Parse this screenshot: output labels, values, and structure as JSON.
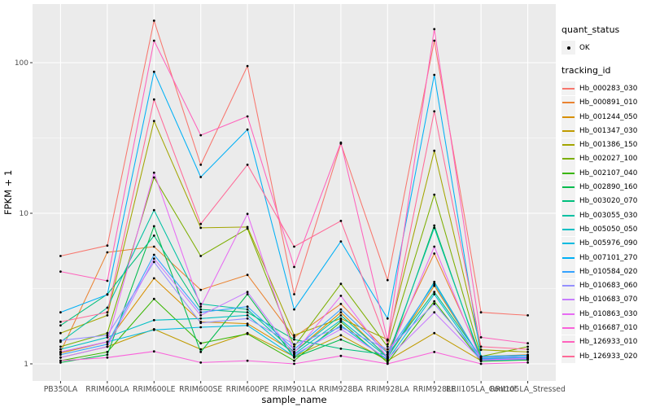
{
  "figure": {
    "bg": "#FFFFFF",
    "panel_bg": "#EBEBEB",
    "grid_color": "#FFFFFF",
    "tick_color": "#333333",
    "tick_label_color": "#4D4D4D",
    "point_color": "#000000",
    "legend_key_bg": "#F2F2F2"
  },
  "legend": {
    "quant_title": "quant_status",
    "quant_items": [
      {
        "label": "OK"
      }
    ],
    "tracking_title": "tracking_id"
  },
  "chart_data": {
    "type": "line",
    "title": "",
    "xlabel": "sample_name",
    "ylabel": "FPKM + 1",
    "yscale": "log10",
    "yticks": [
      1,
      10,
      100
    ],
    "ylim": [
      1,
      250
    ],
    "grid": "major-and-minor",
    "legend_position": "right",
    "categories": [
      "PB350LA",
      "RRIM600LA",
      "RRIM600LE",
      "RRIM600SE",
      "RRIM600PE",
      "RRIM901LA",
      "RRIM928BA",
      "RRIM928LA",
      "RRIM928LE",
      "RRII105LA_Control",
      "RRII105LA_Stressed"
    ],
    "series": [
      {
        "name": "Hb_000283_030",
        "color": "#F8766D",
        "values": [
          5.2,
          6.1,
          190,
          21,
          95,
          2.9,
          29,
          3.6,
          140,
          2.2,
          2.1
        ]
      },
      {
        "name": "Hb_000891_010",
        "color": "#EA8331",
        "values": [
          1.2,
          5.5,
          6.0,
          3.1,
          3.9,
          1.5,
          2.5,
          1.2,
          5.4,
          1.12,
          1.15
        ]
      },
      {
        "name": "Hb_001244_050",
        "color": "#D89000",
        "values": [
          1.18,
          1.4,
          3.7,
          1.9,
          1.85,
          1.2,
          2.2,
          1.1,
          3.3,
          1.08,
          1.1
        ]
      },
      {
        "name": "Hb_001347_030",
        "color": "#C09B00",
        "values": [
          1.1,
          1.3,
          1.7,
          1.25,
          1.6,
          1.12,
          1.55,
          1.05,
          1.6,
          1.05,
          1.08
        ]
      },
      {
        "name": "Hb_001386_150",
        "color": "#A3A500",
        "values": [
          1.6,
          2.1,
          41,
          8.0,
          8.1,
          1.55,
          2.0,
          1.45,
          26,
          1.24,
          1.2
        ]
      },
      {
        "name": "Hb_002027_100",
        "color": "#7CAE00",
        "values": [
          1.3,
          1.6,
          17.3,
          5.2,
          7.9,
          1.3,
          3.4,
          1.3,
          13.3,
          1.12,
          1.3
        ]
      },
      {
        "name": "Hb_002107_040",
        "color": "#39B600",
        "values": [
          1.05,
          1.2,
          2.7,
          1.37,
          1.58,
          1.05,
          1.9,
          1.02,
          2.6,
          1.04,
          1.06
        ]
      },
      {
        "name": "Hb_002890_160",
        "color": "#00BB4E",
        "values": [
          1.02,
          1.15,
          8.2,
          1.2,
          2.9,
          1.1,
          1.45,
          1.08,
          8.3,
          1.06,
          1.09
        ]
      },
      {
        "name": "Hb_003020_070",
        "color": "#00BF7D",
        "values": [
          1.8,
          2.9,
          7.1,
          2.3,
          2.2,
          1.45,
          1.26,
          1.15,
          3.0,
          1.1,
          1.12
        ]
      },
      {
        "name": "Hb_003055_030",
        "color": "#00C1A3",
        "values": [
          1.4,
          2.36,
          10.5,
          2.5,
          2.3,
          1.2,
          2.1,
          1.12,
          8.0,
          1.09,
          1.1
        ]
      },
      {
        "name": "Hb_005050_050",
        "color": "#00BFC4",
        "values": [
          1.25,
          1.5,
          1.95,
          2.0,
          2.1,
          1.16,
          1.95,
          1.1,
          3.5,
          1.07,
          1.08
        ]
      },
      {
        "name": "Hb_005976_090",
        "color": "#00BAE0",
        "values": [
          1.2,
          1.4,
          1.68,
          1.75,
          1.8,
          1.12,
          1.8,
          1.06,
          2.9,
          1.05,
          1.07
        ]
      },
      {
        "name": "Hb_007101_270",
        "color": "#00B0F6",
        "values": [
          2.2,
          2.88,
          87,
          17.4,
          36,
          2.3,
          6.5,
          2.0,
          83,
          1.12,
          1.14
        ]
      },
      {
        "name": "Hb_010584_020",
        "color": "#35A2FF",
        "values": [
          1.15,
          1.35,
          5.3,
          2.2,
          2.4,
          1.25,
          2.3,
          1.18,
          3.4,
          1.08,
          1.1
        ]
      },
      {
        "name": "Hb_010683_060",
        "color": "#9590FF",
        "values": [
          1.43,
          1.55,
          4.75,
          1.87,
          2.0,
          1.35,
          1.75,
          1.25,
          2.5,
          1.1,
          1.12
        ]
      },
      {
        "name": "Hb_010683_070",
        "color": "#C77CFF",
        "values": [
          1.1,
          1.3,
          5.0,
          2.1,
          3.0,
          1.15,
          1.7,
          1.08,
          2.2,
          1.06,
          1.09
        ]
      },
      {
        "name": "Hb_010863_030",
        "color": "#E76BF3",
        "values": [
          1.2,
          1.4,
          18.6,
          2.4,
          9.9,
          1.18,
          2.83,
          1.1,
          6.0,
          1.06,
          1.08
        ]
      },
      {
        "name": "Hb_016687_010",
        "color": "#FA62DB",
        "values": [
          1.05,
          1.1,
          1.21,
          1.02,
          1.05,
          1.0,
          1.13,
          1.0,
          1.2,
          1.0,
          1.02
        ]
      },
      {
        "name": "Hb_126933_010",
        "color": "#FF62BC",
        "values": [
          4.1,
          3.56,
          140,
          33,
          44,
          4.4,
          29.5,
          1.43,
          167,
          1.5,
          1.37
        ]
      },
      {
        "name": "Hb_126933_020",
        "color": "#FF6A98",
        "values": [
          1.9,
          2.2,
          57,
          8.5,
          21,
          6.0,
          8.9,
          1.35,
          47.5,
          1.3,
          1.25
        ]
      }
    ]
  }
}
